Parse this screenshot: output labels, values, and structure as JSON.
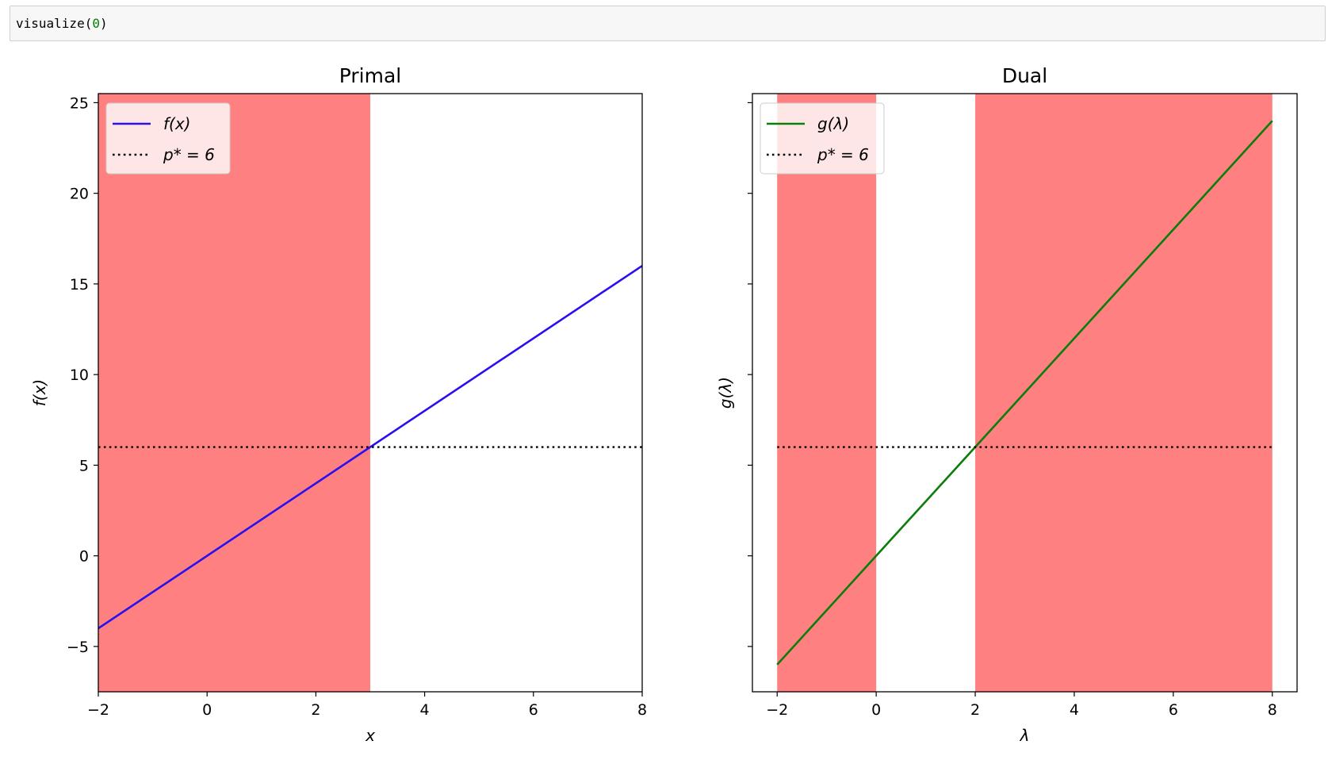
{
  "code_cell": {
    "func": "visualize(",
    "arg": "0",
    "close": ")"
  },
  "colors": {
    "shade": "#ff8080",
    "primal_line": "#2a10f0",
    "dual_line": "#0a7d0a",
    "optimum": "#000000"
  },
  "chart_data": [
    {
      "type": "line",
      "title": "Primal",
      "xlabel": "x",
      "ylabel": "f(x)",
      "xlim": [
        -2,
        8
      ],
      "ylim": [
        -7.5,
        25.5
      ],
      "xticks": [
        -2,
        0,
        2,
        4,
        6,
        8
      ],
      "xtick_labels": [
        "−2",
        "0",
        "2",
        "4",
        "6",
        "8"
      ],
      "yticks": [
        -5,
        0,
        5,
        10,
        15,
        20,
        25
      ],
      "ytick_labels": [
        "−5",
        "0",
        "5",
        "10",
        "15",
        "20",
        "25"
      ],
      "show_ytick_labels": true,
      "shaded_x_ranges": [
        [
          -2,
          3
        ]
      ],
      "series": [
        {
          "name": "f(x)",
          "legend_label": "f(x)",
          "x": [
            -2,
            8
          ],
          "y": [
            -4,
            16
          ],
          "color": "#2a10f0",
          "style": "solid"
        },
        {
          "name": "p* = 6",
          "legend_label": "p* = 6",
          "x": [
            -2,
            8
          ],
          "y": [
            6,
            6
          ],
          "color": "#000000",
          "style": "dotted"
        }
      ],
      "legend": "upper-left"
    },
    {
      "type": "line",
      "title": "Dual",
      "xlabel": "λ",
      "ylabel": "g(λ)",
      "xlim": [
        -2.5,
        8.5
      ],
      "ylim": [
        -7.5,
        25.5
      ],
      "xticks": [
        -2,
        0,
        2,
        4,
        6,
        8
      ],
      "xtick_labels": [
        "−2",
        "0",
        "2",
        "4",
        "6",
        "8"
      ],
      "yticks": [
        -5,
        0,
        5,
        10,
        15,
        20,
        25
      ],
      "ytick_labels": [],
      "show_ytick_labels": false,
      "shaded_x_ranges": [
        [
          -2,
          0
        ],
        [
          2,
          8
        ]
      ],
      "series": [
        {
          "name": "g(λ)",
          "legend_label": "g(λ)",
          "x": [
            -2,
            8
          ],
          "y": [
            -6,
            24
          ],
          "color": "#0a7d0a",
          "style": "solid"
        },
        {
          "name": "p* = 6",
          "legend_label": "p* = 6",
          "x": [
            -2,
            8
          ],
          "y": [
            6,
            6
          ],
          "color": "#000000",
          "style": "dotted"
        }
      ],
      "legend": "upper-left"
    }
  ]
}
